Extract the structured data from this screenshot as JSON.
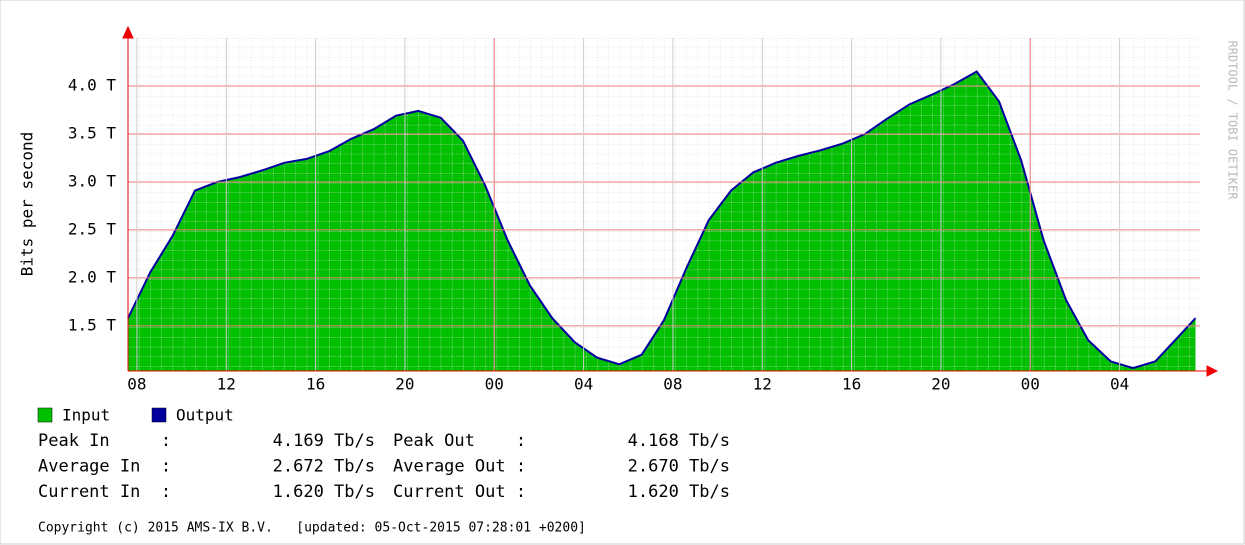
{
  "chart_data": {
    "type": "area",
    "y_label": "Bits per second",
    "watermark": "RRDTOOL / TOBI OETIKER",
    "x": [
      0,
      1,
      2,
      3,
      4,
      5,
      6,
      7,
      8,
      9,
      10,
      11,
      12,
      13,
      14,
      15,
      16,
      17,
      18,
      19,
      20,
      21,
      22,
      23,
      24,
      25,
      26,
      27,
      28,
      29,
      30,
      31,
      32,
      33,
      34,
      35,
      36,
      37,
      38,
      39,
      40,
      41,
      42,
      43,
      44,
      45,
      46,
      47,
      47.8
    ],
    "xlim": [
      0,
      48
    ],
    "xticks": [
      {
        "value": 0.4,
        "label": "08"
      },
      {
        "value": 4.4,
        "label": "12"
      },
      {
        "value": 8.4,
        "label": "16"
      },
      {
        "value": 12.4,
        "label": "20"
      },
      {
        "value": 16.4,
        "label": "00"
      },
      {
        "value": 20.4,
        "label": "04"
      },
      {
        "value": 24.4,
        "label": "08"
      },
      {
        "value": 28.4,
        "label": "12"
      },
      {
        "value": 32.4,
        "label": "16"
      },
      {
        "value": 36.4,
        "label": "20"
      },
      {
        "value": 40.4,
        "label": "00"
      },
      {
        "value": 44.4,
        "label": "04"
      }
    ],
    "day_boundaries": [
      16.4,
      40.4
    ],
    "ylim": [
      1.03,
      4.5
    ],
    "yticks": [
      {
        "value": 1.5,
        "label": "1.5 T"
      },
      {
        "value": 2.0,
        "label": "2.0 T"
      },
      {
        "value": 2.5,
        "label": "2.5 T"
      },
      {
        "value": 3.0,
        "label": "3.0 T"
      },
      {
        "value": 3.5,
        "label": "3.5 T"
      },
      {
        "value": 4.0,
        "label": "4.0 T"
      }
    ],
    "grid": true,
    "series": [
      {
        "name": "Input",
        "color": "#00c000",
        "values": [
          1.58,
          2.06,
          2.44,
          2.91,
          3.0,
          3.05,
          3.12,
          3.2,
          3.24,
          3.32,
          3.45,
          3.55,
          3.69,
          3.74,
          3.67,
          3.43,
          2.96,
          2.39,
          1.92,
          1.58,
          1.33,
          1.17,
          1.1,
          1.2,
          1.56,
          2.1,
          2.6,
          2.91,
          3.1,
          3.2,
          3.27,
          3.33,
          3.4,
          3.5,
          3.66,
          3.81,
          3.91,
          4.02,
          4.15,
          3.84,
          3.22,
          2.39,
          1.77,
          1.35,
          1.13,
          1.06,
          1.13,
          1.38,
          1.58
        ]
      },
      {
        "name": "Output",
        "color": "#0000a0",
        "values": [
          1.58,
          2.06,
          2.44,
          2.91,
          3.0,
          3.05,
          3.12,
          3.2,
          3.24,
          3.32,
          3.45,
          3.55,
          3.69,
          3.74,
          3.67,
          3.43,
          2.96,
          2.39,
          1.92,
          1.58,
          1.33,
          1.17,
          1.1,
          1.2,
          1.56,
          2.1,
          2.6,
          2.91,
          3.1,
          3.2,
          3.27,
          3.33,
          3.4,
          3.5,
          3.66,
          3.81,
          3.91,
          4.02,
          4.15,
          3.84,
          3.22,
          2.39,
          1.77,
          1.35,
          1.13,
          1.06,
          1.13,
          1.38,
          1.58
        ]
      }
    ],
    "stats": [
      [
        {
          "label": "Peak In     :",
          "value": "4.169 Tb/s"
        },
        {
          "label": "Peak Out    :",
          "value": "4.168 Tb/s"
        }
      ],
      [
        {
          "label": "Average In  :",
          "value": "2.672 Tb/s"
        },
        {
          "label": "Average Out :",
          "value": "2.670 Tb/s"
        }
      ],
      [
        {
          "label": "Current In  :",
          "value": "1.620 Tb/s"
        },
        {
          "label": "Current Out :",
          "value": "1.620 Tb/s"
        }
      ]
    ],
    "footer": "Copyright (c) 2015 AMS-IX B.V.   [updated: 05-Oct-2015 07:28:01 +0200]"
  }
}
